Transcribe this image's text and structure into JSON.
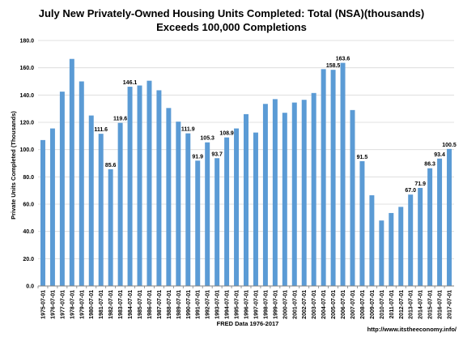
{
  "chart_data": {
    "type": "bar",
    "title": "July New Privately-Owned Housing Units Completed: Total (NSA)(thousands)",
    "subtitle": "Exceeds 100,000 Completions",
    "xlabel": "FRED Data 1976-2017",
    "ylabel": "Private Units Completed (Thousands)",
    "source": "http://www.itstheeconomy.info/",
    "ylim": [
      0,
      180
    ],
    "yticks": [
      "0.0",
      "20.0",
      "40.0",
      "60.0",
      "80.0",
      "100.0",
      "120.0",
      "140.0",
      "160.0",
      "180.0"
    ],
    "grid": true,
    "bar_color": "#5b9bd5",
    "categories": [
      "1975-07-01",
      "1976-07-01",
      "1977-07-01",
      "1978-07-01",
      "1979-07-01",
      "1980-07-01",
      "1981-07-01",
      "1982-07-01",
      "1983-07-01",
      "1984-07-01",
      "1985-07-01",
      "1986-07-01",
      "1987-07-01",
      "1988-07-01",
      "1989-07-01",
      "1990-07-01",
      "1991-07-01",
      "1992-07-01",
      "1993-07-01",
      "1994-07-01",
      "1995-07-01",
      "1996-07-01",
      "1997-07-01",
      "1998-07-01",
      "1999-07-01",
      "2000-07-01",
      "2001-07-01",
      "2002-07-01",
      "2003-07-01",
      "2004-07-01",
      "2005-07-01",
      "2006-07-01",
      "2007-07-01",
      "2008-07-01",
      "2009-07-01",
      "2010-07-01",
      "2011-07-01",
      "2012-07-01",
      "2013-07-01",
      "2014-07-01",
      "2015-07-01",
      "2016-07-01",
      "2017-07-01"
    ],
    "values": [
      107,
      115.5,
      142.5,
      166.5,
      150,
      125,
      111.6,
      85.6,
      119.6,
      146.1,
      147,
      150.5,
      143.5,
      130.5,
      120.5,
      111.9,
      91.9,
      105.3,
      93.7,
      108.9,
      115.5,
      126,
      112.5,
      133.5,
      137,
      127,
      134.5,
      136.5,
      141.5,
      159,
      158.5,
      163.6,
      129,
      91.5,
      66.5,
      48,
      53.5,
      58,
      67.0,
      71.9,
      86.3,
      93.4,
      100.5
    ],
    "labeled": {
      "1981-07-01": "111.6",
      "1982-07-01": "85.6",
      "1983-07-01": "119.6",
      "1984-07-01": "146.1",
      "1990-07-01": "111.9",
      "1991-07-01": "91.9",
      "1992-07-01": "105.3",
      "1993-07-01": "93.7",
      "1994-07-01": "108.9",
      "2005-07-01": "158.5",
      "2006-07-01": "163.6",
      "2008-07-01": "91.5",
      "2013-07-01": "67.0",
      "2014-07-01": "71.9",
      "2015-07-01": "86.3",
      "2016-07-01": "93.4",
      "2017-07-01": "100.5"
    }
  }
}
